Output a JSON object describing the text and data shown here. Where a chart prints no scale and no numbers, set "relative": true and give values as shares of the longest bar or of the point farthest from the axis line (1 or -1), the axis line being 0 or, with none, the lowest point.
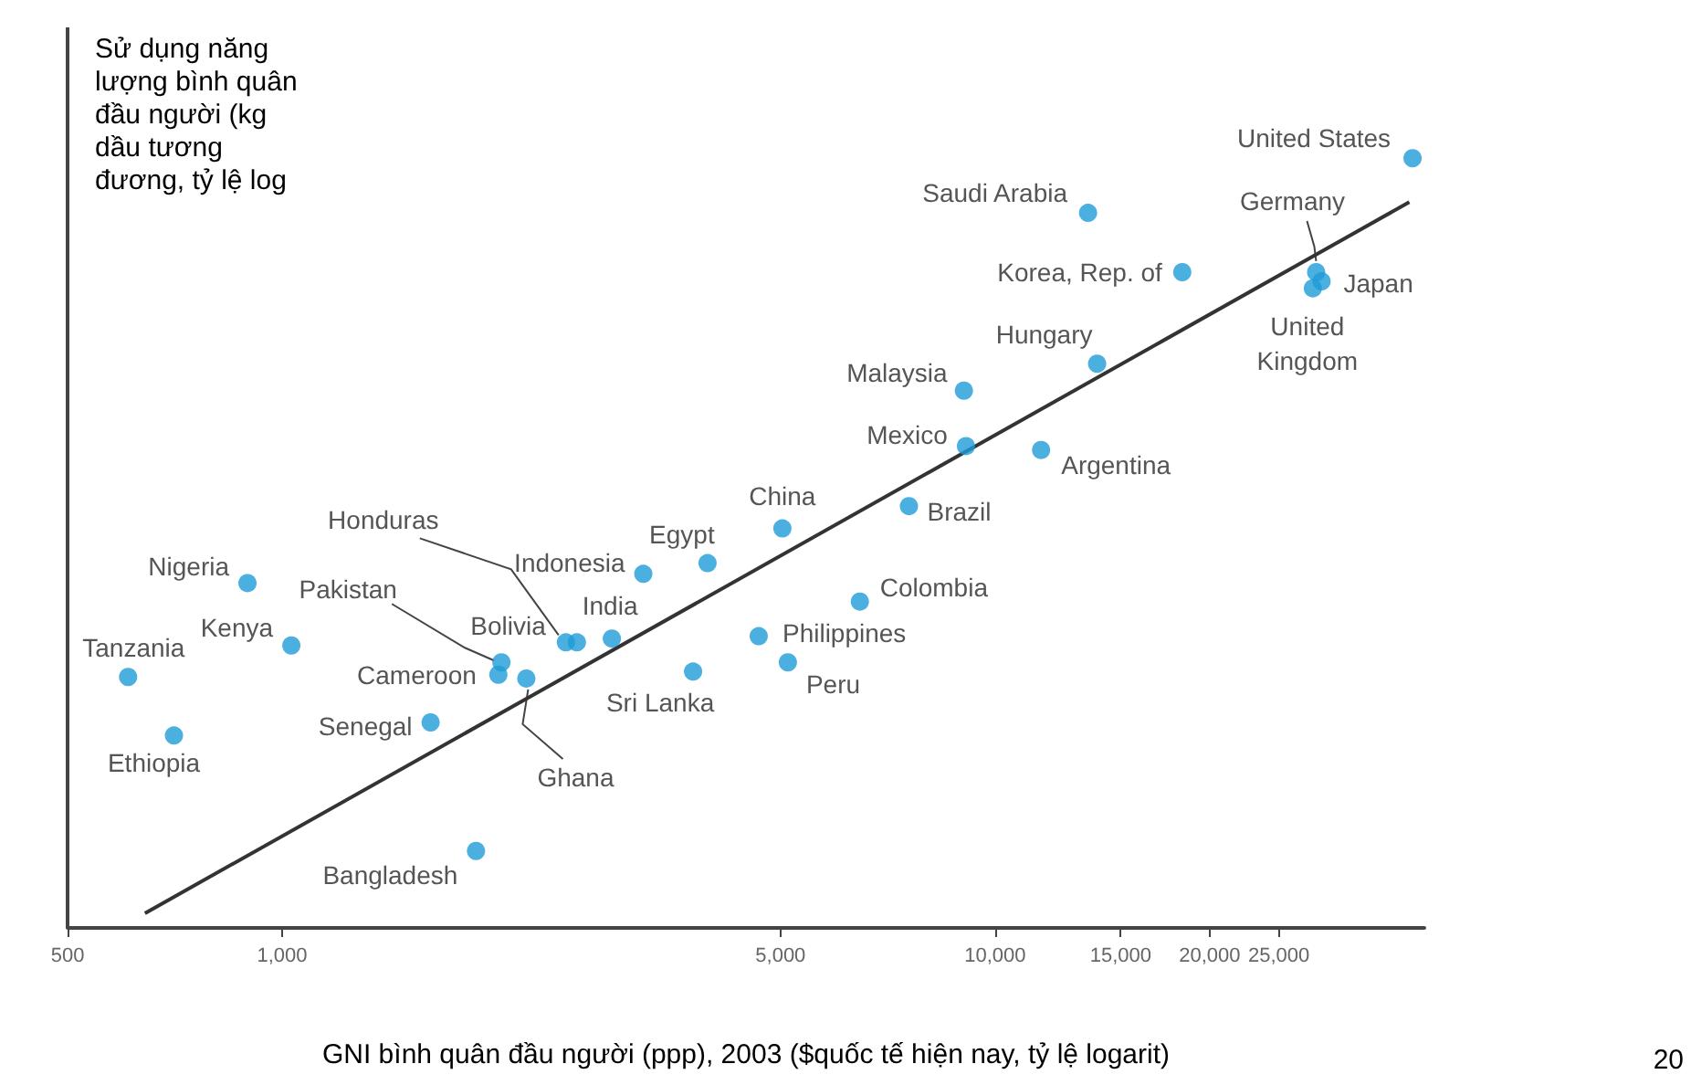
{
  "chart_data": {
    "type": "scatter",
    "relative": true,
    "log": "x",
    "grid": false,
    "xlabel": "GNI bình quân đầu người (ppp), 2003 ($quốc tế hiện nay, tỷ lệ logarit)",
    "ylabel": "Sử dụng năng lượng bình quân đầu người (kg dầu tương đương, tỷ lệ log",
    "xlim": [
      500,
      40000
    ],
    "xticks": [
      500,
      {
        "value": 1000,
        "label": "1,000"
      },
      {
        "value": 5000,
        "label": "5,000"
      },
      {
        "value": 10000,
        "label": "10,000"
      },
      {
        "value": 15000,
        "label": "15,000"
      },
      {
        "value": 20000,
        "label": "20,000"
      },
      {
        "value": 25000,
        "label": "25,000"
      }
    ],
    "series": [
      {
        "marker": "circle",
        "color": "#1e9bd7",
        "x": [
          608,
          705,
          894,
          1030,
          1615,
          1870,
          2010,
          2030,
          2200,
          2500,
          2590,
          2900,
          3210,
          3950,
          3770,
          4660,
          5120,
          5030,
          6460,
          7570,
          9100,
          9040,
          11600,
          13900,
          13500,
          18300,
          28200,
          28700,
          27900,
          38500
        ],
        "values": [
          0.326,
          0.25,
          0.448,
          0.367,
          0.267,
          0.1,
          0.329,
          0.345,
          0.324,
          0.371,
          0.371,
          0.376,
          0.46,
          0.474,
          0.333,
          0.379,
          0.345,
          0.519,
          0.424,
          0.548,
          0.626,
          0.698,
          0.621,
          0.733,
          0.929,
          0.852,
          0.852,
          0.84,
          0.831,
          1.0
        ]
      },
      {
        "type": "line",
        "color": "#333333",
        "x": [
          642,
          38100
        ],
        "values": [
          0.019,
          0.943
        ]
      }
    ],
    "annotations": [
      {
        "text": "Tanzania",
        "x": 608,
        "y": 0.326
      },
      {
        "text": "Ethiopia",
        "x": 705,
        "y": 0.25
      },
      {
        "text": "Nigeria",
        "x": 894,
        "y": 0.448
      },
      {
        "text": "Kenya",
        "x": 1030,
        "y": 0.367
      },
      {
        "text": "Senegal",
        "x": 1615,
        "y": 0.267
      },
      {
        "text": "Bangladesh",
        "x": 1870,
        "y": 0.1
      },
      {
        "text": "Cameroon",
        "x": 2010,
        "y": 0.329
      },
      {
        "text": "Pakistan",
        "x": 2030,
        "y": 0.345
      },
      {
        "text": "Ghana",
        "x": 2200,
        "y": 0.324
      },
      {
        "text": "Honduras",
        "x": 2500,
        "y": 0.371
      },
      {
        "text": "Bolivia",
        "x": 2590,
        "y": 0.371
      },
      {
        "text": "India",
        "x": 2900,
        "y": 0.376
      },
      {
        "text": "Indonesia",
        "x": 3210,
        "y": 0.46
      },
      {
        "text": "Egypt",
        "x": 3950,
        "y": 0.474
      },
      {
        "text": "Sri Lanka",
        "x": 3770,
        "y": 0.333
      },
      {
        "text": "Philippines",
        "x": 4660,
        "y": 0.379
      },
      {
        "text": "Peru",
        "x": 5120,
        "y": 0.345
      },
      {
        "text": "China",
        "x": 5030,
        "y": 0.519
      },
      {
        "text": "Colombia",
        "x": 6460,
        "y": 0.424
      },
      {
        "text": "Brazil",
        "x": 7570,
        "y": 0.548
      },
      {
        "text": "Mexico",
        "x": 9100,
        "y": 0.626
      },
      {
        "text": "Malaysia",
        "x": 9040,
        "y": 0.698
      },
      {
        "text": "Argentina",
        "x": 11600,
        "y": 0.621
      },
      {
        "text": "Hungary",
        "x": 13900,
        "y": 0.733
      },
      {
        "text": "Saudi Arabia",
        "x": 13500,
        "y": 0.929
      },
      {
        "text": "Korea, Rep. of",
        "x": 18300,
        "y": 0.852
      },
      {
        "text": "Germany",
        "x": 28200,
        "y": 0.852
      },
      {
        "text": "Japan",
        "x": 28700,
        "y": 0.84
      },
      {
        "text": "United\nKingdom",
        "x": 27900,
        "y": 0.831
      },
      {
        "text": "United States",
        "x": 38500,
        "y": 1.0
      },
      "20"
    ]
  }
}
